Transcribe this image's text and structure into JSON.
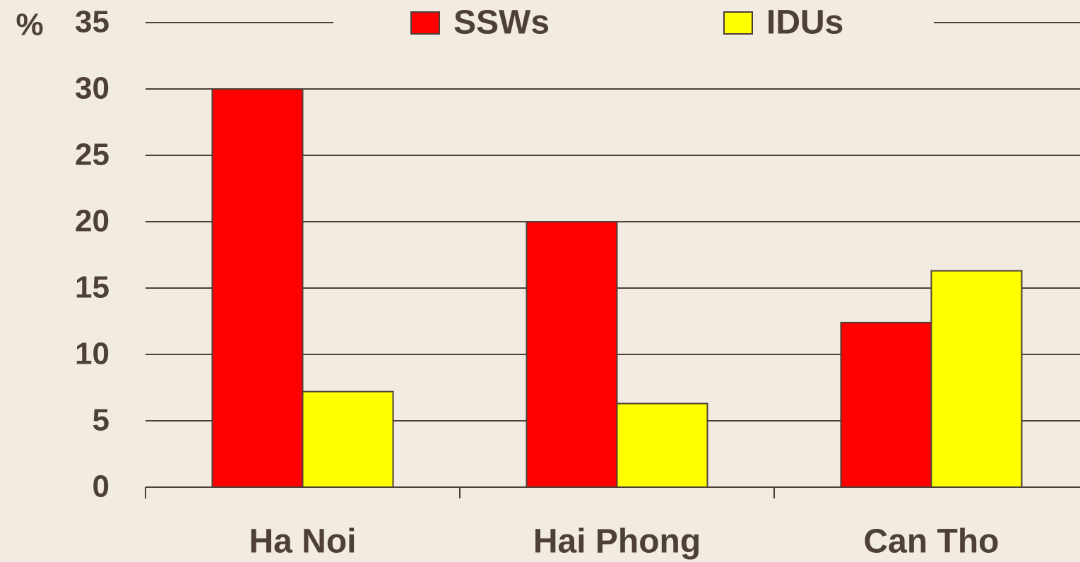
{
  "chart_data": {
    "type": "bar",
    "y_label": "%",
    "categories": [
      "Ha Noi",
      "Hai Phong",
      "Can Tho"
    ],
    "series": [
      {
        "name": "SSWs",
        "color": "#ff0000",
        "values": [
          30,
          20,
          12.4
        ]
      },
      {
        "name": "IDUs",
        "color": "#ffff00",
        "values": [
          7.2,
          6.3,
          16.3
        ]
      }
    ],
    "ylim": [
      0,
      35
    ],
    "yticks": [
      0,
      5,
      10,
      15,
      20,
      25,
      30,
      35
    ],
    "grid": true,
    "legend": "top"
  }
}
